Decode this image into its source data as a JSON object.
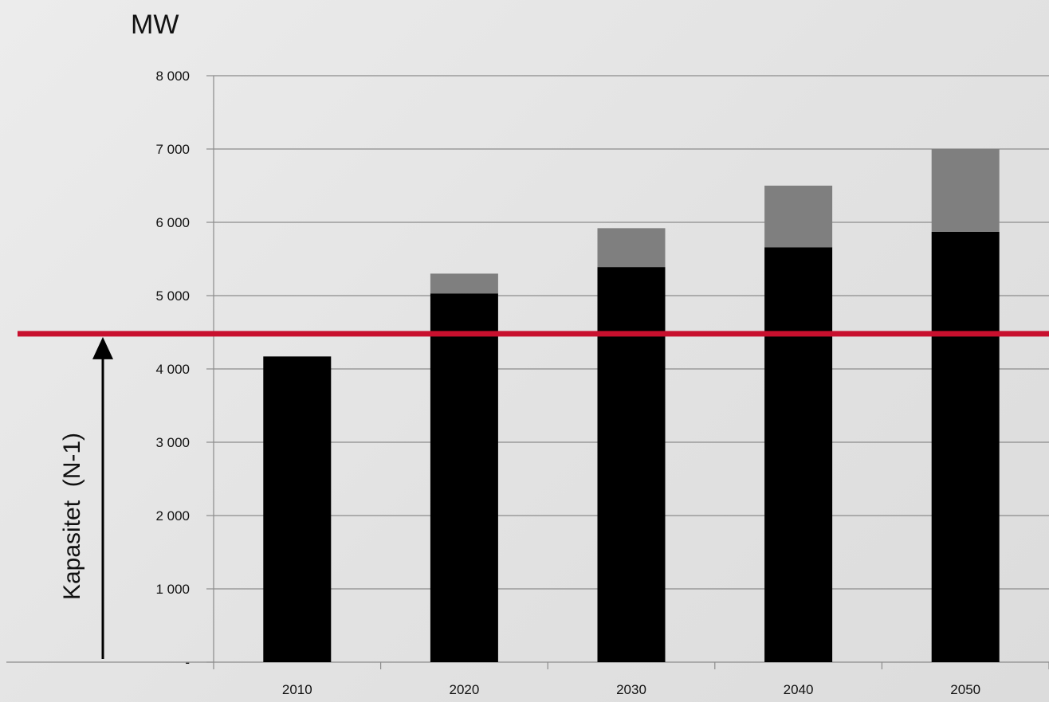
{
  "chart_data": {
    "type": "bar",
    "stacked": true,
    "categories": [
      "2010",
      "2020",
      "2030",
      "2040",
      "2050"
    ],
    "series": [
      {
        "values": [
          4170,
          5030,
          5390,
          5660,
          5870
        ],
        "color": "#000000"
      },
      {
        "values": [
          0,
          270,
          530,
          840,
          1130
        ],
        "color": "#7f7f7f"
      }
    ],
    "ylabel": "MW",
    "ylim": [
      0,
      8000
    ],
    "yticks": [
      0,
      1000,
      2000,
      3000,
      4000,
      5000,
      6000,
      7000,
      8000
    ],
    "ytick_labels": [
      "-",
      "1 000",
      "2 000",
      "3 000",
      "4 000",
      "5 000",
      "6 000",
      "7 000",
      "8 000"
    ],
    "grid": true,
    "reference_line": {
      "value": 4480,
      "color": "#c8102e",
      "label": "Kapasitet  (N-1)"
    }
  }
}
